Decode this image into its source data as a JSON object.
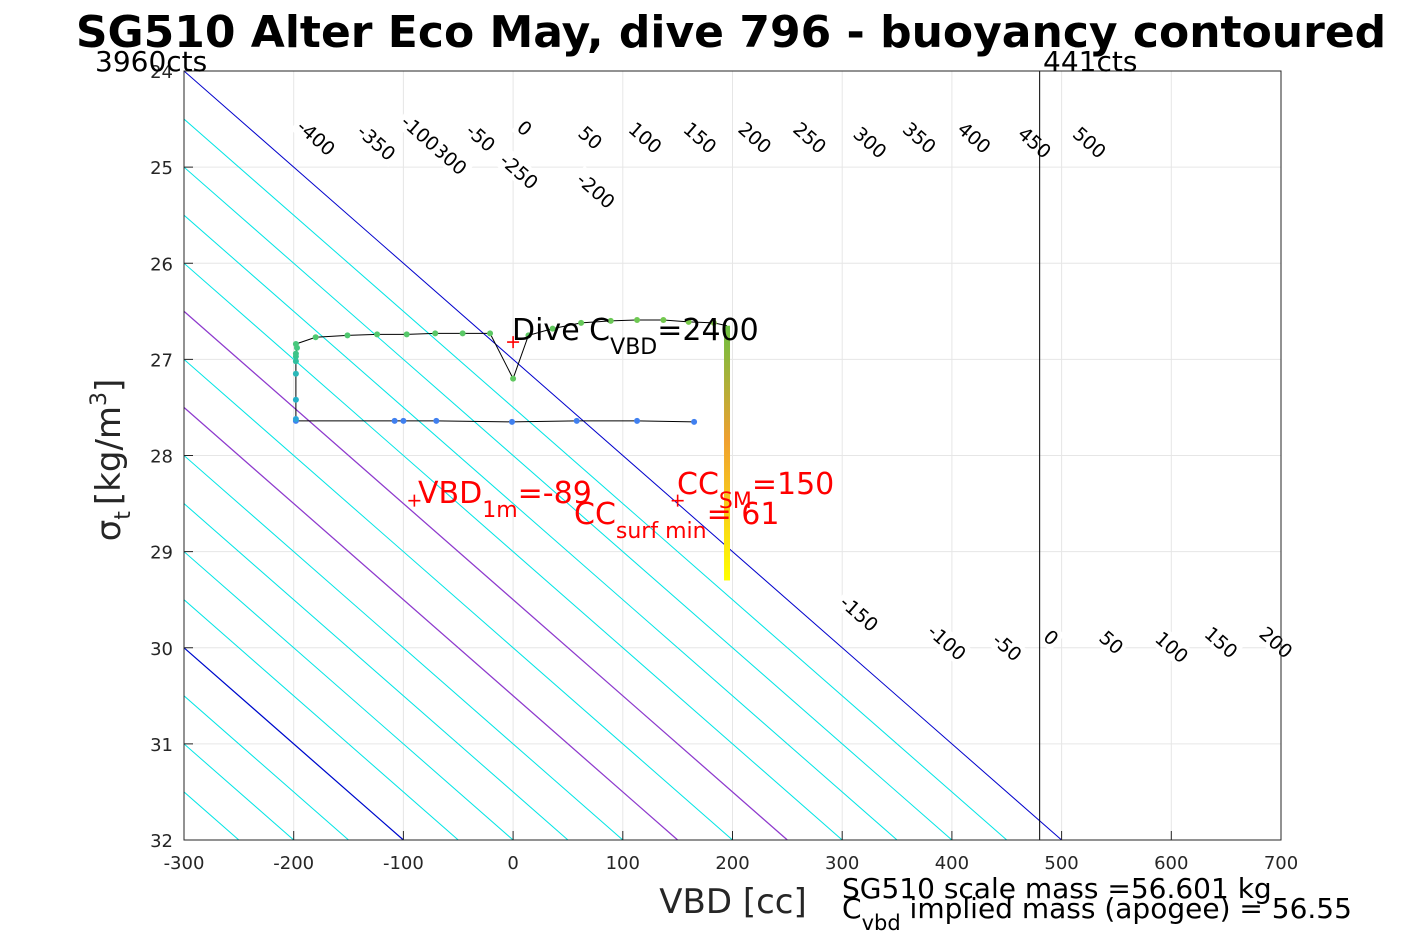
{
  "chart_data": {
    "type": "scatter",
    "title": "SG510 Alter Eco May, dive 796 - buoyancy contoured",
    "xlabel": "VBD [cc]",
    "ylabel_symbol": "σ",
    "ylabel_sub": "t",
    "ylabel_unit": "[kg/m",
    "ylabel_sup": "3",
    "ylabel_close": "]",
    "xlim": [
      -300,
      700
    ],
    "ylim": [
      24,
      32
    ],
    "y_reversed": true,
    "grid": true,
    "xticks": [
      -300,
      -200,
      -100,
      0,
      100,
      200,
      300,
      400,
      500,
      600,
      700
    ],
    "yticks": [
      24,
      25,
      26,
      27,
      28,
      29,
      30,
      31,
      32
    ],
    "count_labels": {
      "left": "3960cts",
      "right": "441cts"
    },
    "count_line_x": 480,
    "contour_slope_cc_per_sigma": 100,
    "contours": {
      "levels": [
        -550,
        -500,
        -450,
        -400,
        -350,
        -300,
        -250,
        -200,
        -150,
        -100,
        -50,
        0,
        50,
        100,
        150,
        200,
        250,
        300,
        350,
        400,
        450,
        500,
        550,
        600,
        650,
        700,
        750,
        800,
        850,
        900,
        950,
        1000
      ],
      "colors": {
        "default": "#00e5e5",
        "zero": "#0000cc",
        "target": "#9933cc"
      },
      "target_levels": [
        100,
        150
      ],
      "labels_upper": [
        "-400",
        "-350",
        "-300",
        "-250",
        "-200",
        "-100",
        "-50",
        "0",
        "50",
        "100",
        "150",
        "200",
        "250",
        "300",
        "350",
        "400",
        "450",
        "500"
      ],
      "labels_upper_levels": [
        -400,
        -350,
        -300,
        -250,
        -200,
        -100,
        -50,
        0,
        50,
        100,
        150,
        200,
        250,
        300,
        350,
        400,
        450,
        500
      ],
      "labels_upper_sigma": [
        24.7,
        24.75,
        24.9,
        25.05,
        25.25,
        24.65,
        24.7,
        24.6,
        24.7,
        24.7,
        24.7,
        24.7,
        24.7,
        24.75,
        24.7,
        24.7,
        24.75,
        24.75
      ],
      "labels_upper_offset": [
        -550,
        -500,
        -450,
        -400,
        -350,
        -450,
        -400,
        -350,
        -300,
        -250,
        -200,
        -150,
        -100,
        -50,
        0,
        50,
        100,
        150
      ],
      "labels_lower": [
        "-150",
        "-100",
        "-50",
        "0",
        "50",
        "100",
        "150",
        "200",
        "250",
        "300",
        "350",
        "400",
        "450",
        "500"
      ],
      "labels_lower_sigma": [
        29.65,
        29.95,
        30.0,
        29.9,
        29.95,
        30.0,
        29.95,
        29.95,
        29.95,
        29.95,
        29.95,
        29.95,
        29.95,
        29.95
      ],
      "labels_lower_offset": [
        -550,
        -500,
        -450,
        -400,
        -350,
        -300,
        -250,
        -200,
        -150,
        -100,
        -50,
        0,
        50,
        100
      ]
    },
    "series": [
      {
        "name": "dive",
        "x": [
          165,
          113,
          58,
          -1,
          -70,
          -100,
          -108,
          -198,
          -198,
          -198,
          -198,
          -198,
          -198,
          -198,
          -197,
          -198,
          -180,
          -151,
          -124,
          -97,
          -71,
          -46,
          -21,
          0
        ],
        "y": [
          27.65,
          27.64,
          27.64,
          27.65,
          27.64,
          27.64,
          27.64,
          27.64,
          27.62,
          27.42,
          27.15,
          27.02,
          26.97,
          26.94,
          26.88,
          26.84,
          26.77,
          26.75,
          26.74,
          26.74,
          26.73,
          26.73,
          26.73,
          27.2
        ],
        "colors": [
          "#4080f0",
          "#4080f0",
          "#4080f0",
          "#4080f0",
          "#4080f0",
          "#4080f0",
          "#4080f0",
          "#4080f0",
          "#2aa6d8",
          "#22b0c8",
          "#2ab8b8",
          "#30c0a0",
          "#38c490",
          "#3ec488",
          "#44c880",
          "#48c87c",
          "#50c870",
          "#50c870",
          "#52c86e",
          "#56c86a",
          "#58c868",
          "#5ac866",
          "#5cc864",
          "#60c860"
        ]
      },
      {
        "name": "climb",
        "x": [
          14,
          36,
          62,
          89,
          113,
          137,
          160,
          183
        ],
        "y": [
          26.75,
          26.68,
          26.62,
          26.6,
          26.59,
          26.59,
          26.61,
          26.62
        ],
        "colors": [
          "#5ec862",
          "#62c85e",
          "#66c85a",
          "#6ac856",
          "#6ec852",
          "#72c84e",
          "#78c84a",
          "#80c846"
        ]
      }
    ],
    "surface_bar": {
      "x": 195,
      "y_from": 26.65,
      "y_to": 29.3,
      "color_top": "#6cc040",
      "color_mid": "#f0a030",
      "color_bottom": "#ffff00"
    },
    "markers": [
      {
        "x": 0,
        "y": 26.82,
        "color": "#ff0000"
      },
      {
        "x": -90,
        "y": 28.47,
        "color": "#ff0000"
      },
      {
        "x": 150,
        "y": 28.47,
        "color": "#ff0000"
      }
    ],
    "annotations": {
      "dive_cvbd": {
        "main": "Dive C",
        "sub": "VBD",
        "tail": "=2400"
      },
      "vbd_1m": {
        "main": "VBD",
        "sub": "1m",
        "tail": "=-89"
      },
      "cc_sm": {
        "main": "CC",
        "sub": "SM",
        "tail": "=150"
      },
      "cc_surf": {
        "main": "CC",
        "sub": "surf min",
        "tail": "= 61"
      }
    },
    "footer": {
      "line1": "SG510 scale mass =56.601 kg",
      "line2_main": "C",
      "line2_sub": "vbd",
      "line2_tail": " implied mass (apogee) = 56.55"
    }
  }
}
